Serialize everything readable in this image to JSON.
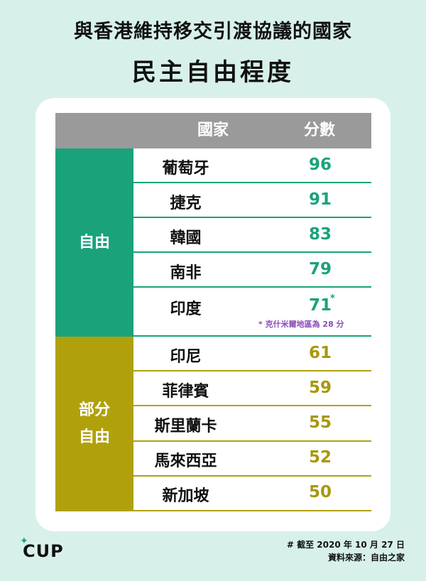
{
  "title": {
    "line1": "與香港維持移交引渡協議的國家",
    "line2": "民主自由程度"
  },
  "colors": {
    "background": "#d7f1ea",
    "free": "#1aa27b",
    "partly_free": "#b0a10c",
    "header": "#9a9a9a",
    "note": "#8a4db8"
  },
  "chart_data": {
    "type": "table",
    "columns": [
      "國家",
      "分數"
    ],
    "groups": [
      {
        "name": "自由",
        "rows": [
          {
            "country": "葡萄牙",
            "score": "96"
          },
          {
            "country": "捷克",
            "score": "91"
          },
          {
            "country": "韓國",
            "score": "83"
          },
          {
            "country": "南非",
            "score": "79"
          },
          {
            "country": "印度",
            "score": "71",
            "marker": "*",
            "note": "* 克什米爾地區為 28 分"
          }
        ]
      },
      {
        "name": "部分\n自由",
        "rows": [
          {
            "country": "印尼",
            "score": "61"
          },
          {
            "country": "菲律賓",
            "score": "59"
          },
          {
            "country": "斯里蘭卡",
            "score": "55"
          },
          {
            "country": "馬來西亞",
            "score": "52"
          },
          {
            "country": "新加坡",
            "score": "50"
          }
        ]
      }
    ]
  },
  "logo": {
    "spark": "✦",
    "text": "CUP"
  },
  "footer": {
    "line1": "# 截至 2020 年 10 月 27 日",
    "line2": "資料來源：自由之家"
  }
}
